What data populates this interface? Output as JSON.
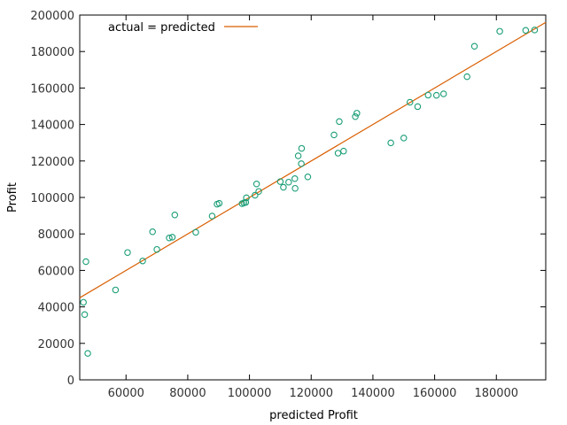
{
  "chart_data": {
    "type": "scatter",
    "title": "",
    "xlabel": "predicted Profit",
    "ylabel": "Profit",
    "xlim": [
      45000,
      196000
    ],
    "ylim": [
      0,
      200000
    ],
    "xticks": [
      60000,
      80000,
      100000,
      120000,
      140000,
      160000,
      180000
    ],
    "yticks": [
      0,
      20000,
      40000,
      60000,
      80000,
      100000,
      120000,
      140000,
      160000,
      180000,
      200000
    ],
    "grid": false,
    "legend_position": "top-left",
    "point_color": "#1a9e77",
    "line_color": "#d95f02",
    "reference_line": {
      "name": "actual = predicted",
      "x": [
        45000,
        196000
      ],
      "y": [
        45000,
        196000
      ]
    },
    "points": [
      {
        "x": 46200,
        "y": 42500
      },
      {
        "x": 46600,
        "y": 35800
      },
      {
        "x": 47000,
        "y": 64800
      },
      {
        "x": 47600,
        "y": 14500
      },
      {
        "x": 56600,
        "y": 49300
      },
      {
        "x": 60500,
        "y": 69800
      },
      {
        "x": 65400,
        "y": 65200
      },
      {
        "x": 68600,
        "y": 81200
      },
      {
        "x": 70000,
        "y": 71500
      },
      {
        "x": 74000,
        "y": 77800
      },
      {
        "x": 75000,
        "y": 78200
      },
      {
        "x": 75800,
        "y": 90400
      },
      {
        "x": 82600,
        "y": 80900
      },
      {
        "x": 87900,
        "y": 89800
      },
      {
        "x": 89500,
        "y": 96300
      },
      {
        "x": 90200,
        "y": 96800
      },
      {
        "x": 97600,
        "y": 96600
      },
      {
        "x": 98200,
        "y": 97000
      },
      {
        "x": 98800,
        "y": 97300
      },
      {
        "x": 99000,
        "y": 99800
      },
      {
        "x": 101800,
        "y": 101200
      },
      {
        "x": 102300,
        "y": 107400
      },
      {
        "x": 103000,
        "y": 103300
      },
      {
        "x": 110000,
        "y": 108700
      },
      {
        "x": 111000,
        "y": 105600
      },
      {
        "x": 112700,
        "y": 108400
      },
      {
        "x": 114700,
        "y": 110300
      },
      {
        "x": 114800,
        "y": 105000
      },
      {
        "x": 115800,
        "y": 122800
      },
      {
        "x": 116900,
        "y": 126900
      },
      {
        "x": 116800,
        "y": 118500
      },
      {
        "x": 118900,
        "y": 111300
      },
      {
        "x": 127400,
        "y": 134300
      },
      {
        "x": 128700,
        "y": 124300
      },
      {
        "x": 129100,
        "y": 141600
      },
      {
        "x": 130500,
        "y": 125400
      },
      {
        "x": 134300,
        "y": 144300
      },
      {
        "x": 134800,
        "y": 146200
      },
      {
        "x": 145800,
        "y": 129900
      },
      {
        "x": 150000,
        "y": 132600
      },
      {
        "x": 152000,
        "y": 152200
      },
      {
        "x": 154500,
        "y": 149800
      },
      {
        "x": 157900,
        "y": 156100
      },
      {
        "x": 160600,
        "y": 156000
      },
      {
        "x": 162900,
        "y": 156800
      },
      {
        "x": 170500,
        "y": 166200
      },
      {
        "x": 172900,
        "y": 182900
      },
      {
        "x": 181100,
        "y": 191100
      },
      {
        "x": 189500,
        "y": 191600
      },
      {
        "x": 192400,
        "y": 191800
      }
    ]
  }
}
